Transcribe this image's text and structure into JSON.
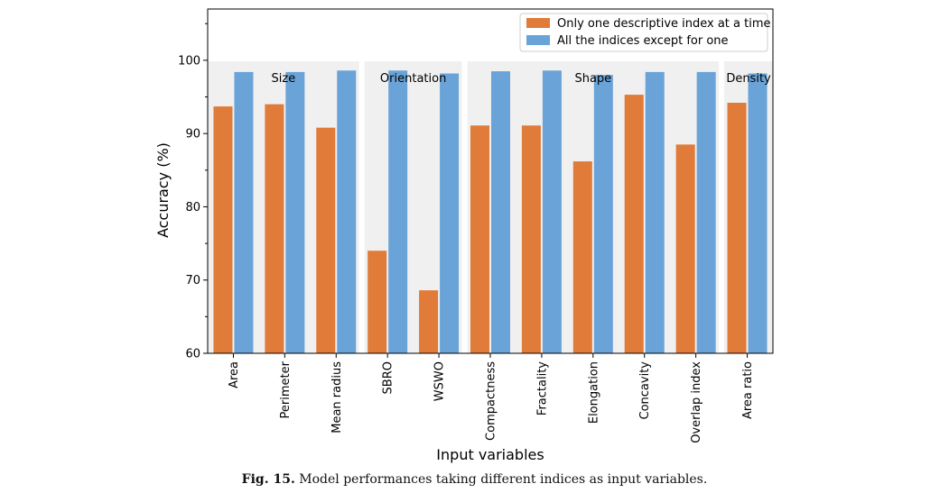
{
  "chart_data": {
    "type": "bar",
    "categories": [
      "Area",
      "Perimeter",
      "Mean radius",
      "SBRO",
      "WSWO",
      "Compactness",
      "Fractality",
      "Elongation",
      "Concavity",
      "Overlap index",
      "Area ratio"
    ],
    "series": [
      {
        "name": "Only one descriptive index at a time",
        "color": "#E07B39",
        "values": [
          93.7,
          94.0,
          90.8,
          74.0,
          68.6,
          91.1,
          91.1,
          86.2,
          95.3,
          88.5,
          94.2
        ]
      },
      {
        "name": "All the indices except for one",
        "color": "#6AA3D8",
        "values": [
          98.4,
          98.4,
          98.6,
          98.6,
          98.2,
          98.5,
          98.6,
          98.0,
          98.4,
          98.4,
          98.2
        ]
      }
    ],
    "groups": [
      {
        "label": "Size",
        "start": 0,
        "end": 2
      },
      {
        "label": "Orientation",
        "start": 3,
        "end": 4
      },
      {
        "label": "Shape",
        "start": 5,
        "end": 9
      },
      {
        "label": "Density",
        "start": 10,
        "end": 10
      }
    ],
    "xlabel": "Input variables",
    "ylabel": "Accuracy (%)",
    "ylim": [
      60,
      107
    ],
    "yticks": [
      60,
      70,
      80,
      90,
      100
    ],
    "legend_position": "top-right",
    "group_background": "#f0f0f0"
  },
  "caption": {
    "label": "Fig. 15.",
    "text": " Model performances taking different indices as input variables."
  }
}
